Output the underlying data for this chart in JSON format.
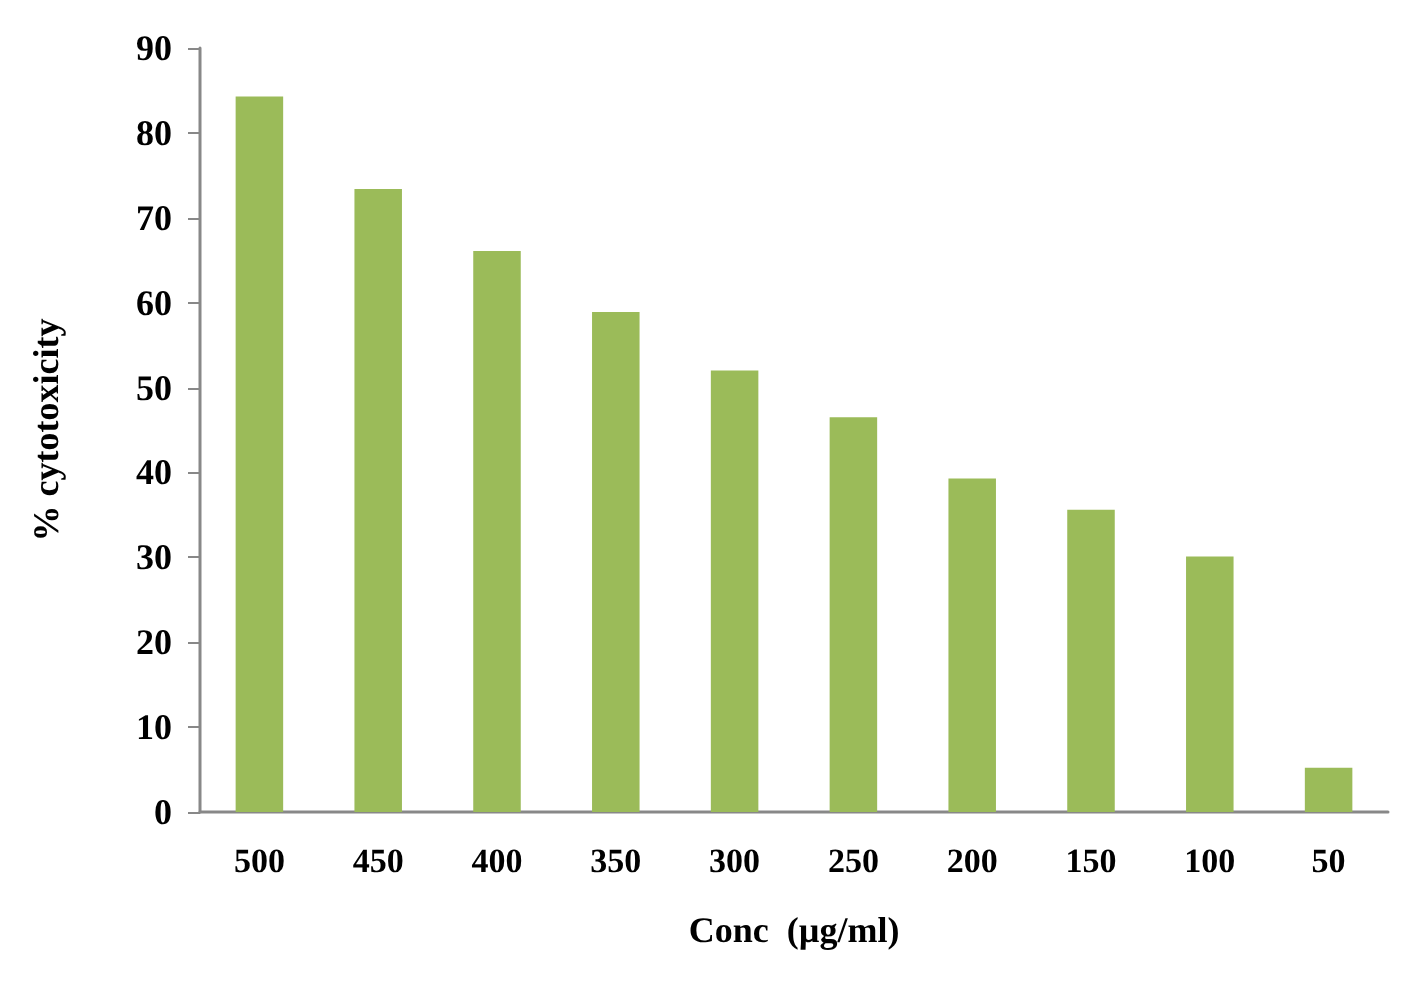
{
  "chart_data": {
    "type": "bar",
    "xlabel": "Conc  (µg/ml)",
    "ylabel": "% cytotoxicity",
    "categories": [
      "500",
      "450",
      "400",
      "350",
      "300",
      "250",
      "200",
      "150",
      "100",
      "50"
    ],
    "values": [
      84.3,
      73.4,
      66.1,
      58.9,
      52.0,
      46.5,
      39.3,
      35.6,
      30.1,
      5.2
    ],
    "color": "#9bbb59",
    "ylim": [
      0,
      90
    ],
    "yticks": [
      0,
      10,
      20,
      30,
      40,
      50,
      60,
      70,
      80,
      90
    ],
    "grid": false
  }
}
